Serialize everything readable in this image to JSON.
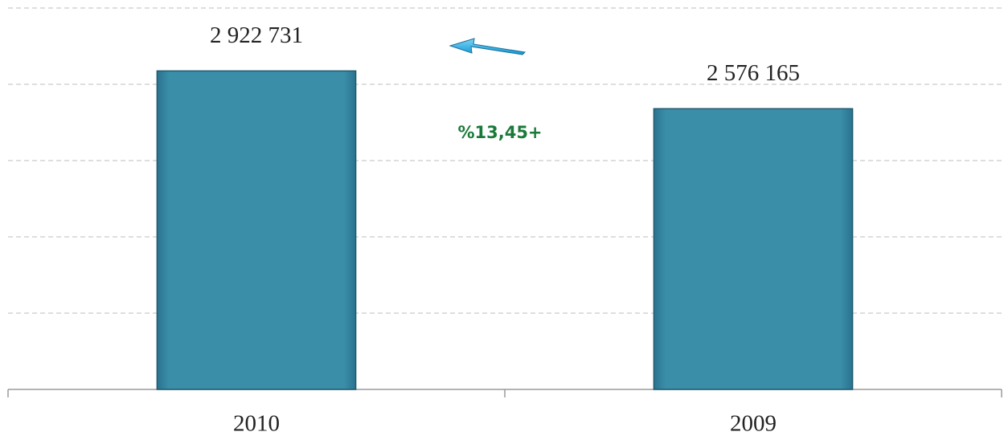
{
  "chart_data": {
    "type": "bar",
    "categories": [
      "2010",
      "2009"
    ],
    "values": [
      2922731,
      2576165
    ],
    "value_labels": [
      "2 922 731",
      "2 576 165"
    ],
    "color": "#3a8ea8",
    "ylim": [
      0,
      3500000
    ],
    "yticks": [
      0,
      700000,
      1400000,
      2100000,
      2800000,
      3500000
    ],
    "grid": true,
    "annotation": "%13,45+"
  }
}
